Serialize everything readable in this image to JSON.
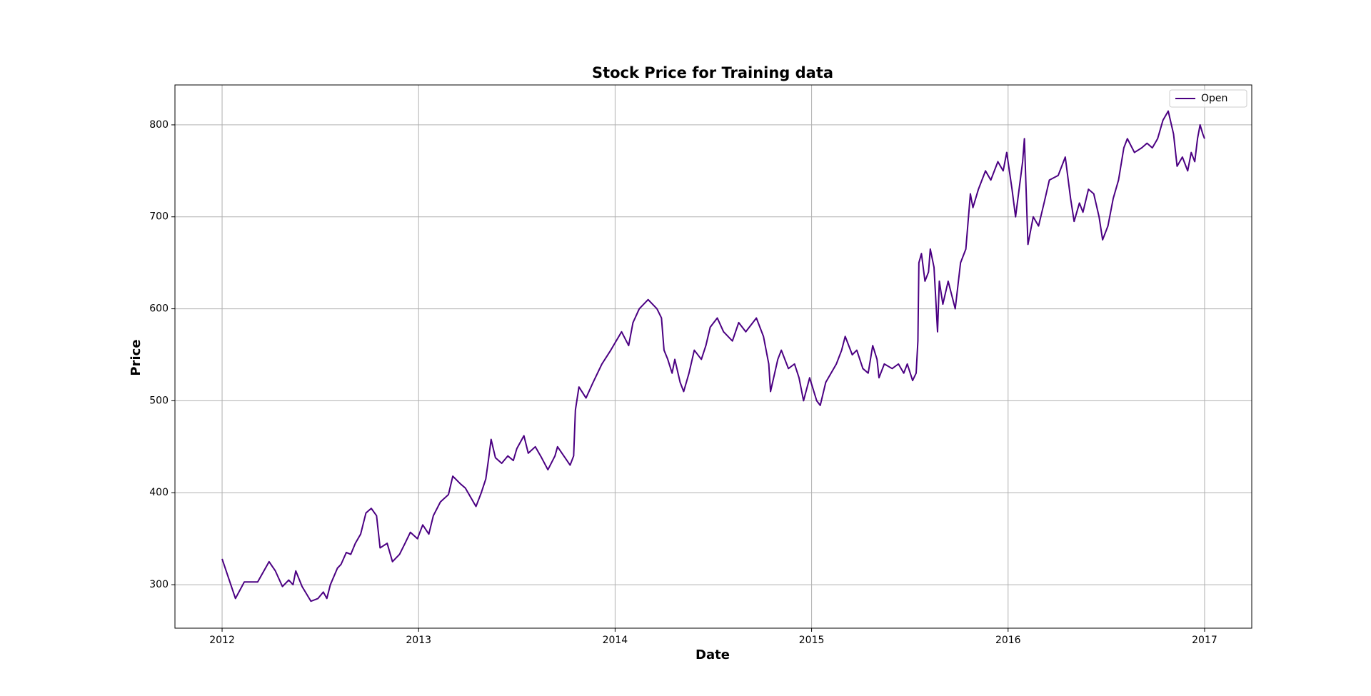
{
  "chart_data": {
    "type": "line",
    "title": "Stock Price for Training data",
    "xlabel": "Date",
    "ylabel": "Price",
    "xlim": [
      2011.76,
      2017.24
    ],
    "xticks": [
      2012,
      2013,
      2014,
      2015,
      2016,
      2017
    ],
    "ylim": [
      252.7,
      843.4
    ],
    "yticks": [
      300,
      400,
      500,
      600,
      700,
      800
    ],
    "grid": true,
    "legend": "upper right",
    "x": [
      2012.0,
      2012.068,
      2012.113,
      2012.181,
      2012.239,
      2012.271,
      2012.307,
      2012.339,
      2012.361,
      2012.375,
      2012.407,
      2012.452,
      2012.488,
      2012.515,
      2012.533,
      2012.551,
      2012.587,
      2012.605,
      2012.632,
      2012.655,
      2012.678,
      2012.705,
      2012.732,
      2012.759,
      2012.786,
      2012.804,
      2012.84,
      2012.867,
      2012.903,
      2012.931,
      2012.958,
      2012.994,
      2013.021,
      2013.052,
      2013.075,
      2013.111,
      2013.152,
      2013.174,
      2013.211,
      2013.238,
      2013.265,
      2013.292,
      2013.319,
      2013.342,
      2013.355,
      2013.369,
      2013.391,
      2013.423,
      2013.454,
      2013.482,
      2013.5,
      2013.536,
      2013.558,
      2013.594,
      2013.626,
      2013.658,
      2013.694,
      2013.707,
      2013.739,
      2013.771,
      2013.789,
      2013.798,
      2013.816,
      2013.852,
      2013.888,
      2013.933,
      2013.978,
      2014.033,
      2014.069,
      2014.091,
      2014.123,
      2014.168,
      2014.213,
      2014.236,
      2014.249,
      2014.268,
      2014.29,
      2014.304,
      2014.331,
      2014.349,
      2014.376,
      2014.403,
      2014.439,
      2014.462,
      2014.484,
      2014.52,
      2014.552,
      2014.597,
      2014.629,
      2014.665,
      2014.719,
      2014.755,
      2014.782,
      2014.791,
      2014.828,
      2014.846,
      2014.882,
      2014.913,
      2014.936,
      2014.959,
      2014.99,
      2015.026,
      2015.044,
      2015.072,
      2015.099,
      2015.126,
      2015.153,
      2015.171,
      2015.207,
      2015.23,
      2015.261,
      2015.288,
      2015.311,
      2015.333,
      2015.343,
      2015.37,
      2015.41,
      2015.442,
      2015.469,
      2015.487,
      2015.514,
      2015.532,
      2015.541,
      2015.546,
      2015.559,
      2015.577,
      2015.595,
      2015.604,
      2015.623,
      2015.641,
      2015.65,
      2015.668,
      2015.695,
      2015.731,
      2015.758,
      2015.785,
      2015.808,
      2015.821,
      2015.849,
      2015.885,
      2015.912,
      2015.948,
      2015.975,
      2015.993,
      2016.02,
      2016.038,
      2016.056,
      2016.074,
      2016.083,
      2016.101,
      2016.128,
      2016.155,
      2016.183,
      2016.21,
      2016.255,
      2016.291,
      2016.318,
      2016.336,
      2016.363,
      2016.381,
      2016.409,
      2016.436,
      2016.463,
      2016.481,
      2016.508,
      2016.535,
      2016.562,
      2016.589,
      2016.607,
      2016.643,
      2016.68,
      2016.707,
      2016.734,
      2016.761,
      2016.788,
      2016.815,
      2016.842,
      2016.86,
      2016.887,
      2016.914,
      2016.932,
      2016.95,
      2016.964,
      2016.977,
      2016.991,
      2017.0
    ],
    "series": [
      {
        "name": "Open",
        "color": "#4b0082",
        "values": [
          328,
          285,
          303,
          303,
          325,
          315,
          298,
          305,
          300,
          315,
          298,
          282,
          285,
          292,
          285,
          300,
          318,
          322,
          335,
          333,
          345,
          355,
          378,
          383,
          375,
          340,
          345,
          325,
          333,
          345,
          357,
          350,
          365,
          355,
          375,
          390,
          398,
          418,
          410,
          405,
          395,
          385,
          400,
          415,
          435,
          458,
          438,
          432,
          440,
          435,
          448,
          462,
          443,
          450,
          438,
          425,
          440,
          450,
          440,
          430,
          440,
          490,
          515,
          503,
          520,
          540,
          555,
          575,
          560,
          585,
          600,
          610,
          600,
          590,
          555,
          545,
          530,
          545,
          520,
          510,
          530,
          555,
          545,
          560,
          580,
          590,
          575,
          565,
          585,
          575,
          590,
          570,
          540,
          510,
          545,
          555,
          535,
          540,
          525,
          500,
          525,
          500,
          495,
          520,
          530,
          540,
          555,
          570,
          550,
          555,
          535,
          530,
          560,
          545,
          525,
          540,
          535,
          540,
          530,
          540,
          522,
          530,
          565,
          650,
          660,
          630,
          640,
          665,
          645,
          575,
          630,
          605,
          630,
          600,
          650,
          665,
          725,
          710,
          730,
          750,
          740,
          760,
          750,
          770,
          730,
          700,
          730,
          760,
          785,
          670,
          700,
          690,
          715,
          740,
          745,
          765,
          720,
          695,
          715,
          705,
          730,
          725,
          700,
          675,
          690,
          720,
          740,
          775,
          785,
          770,
          775,
          780,
          775,
          785,
          805,
          815,
          790,
          755,
          765,
          750,
          770,
          760,
          785,
          800,
          790,
          785
        ]
      }
    ]
  }
}
